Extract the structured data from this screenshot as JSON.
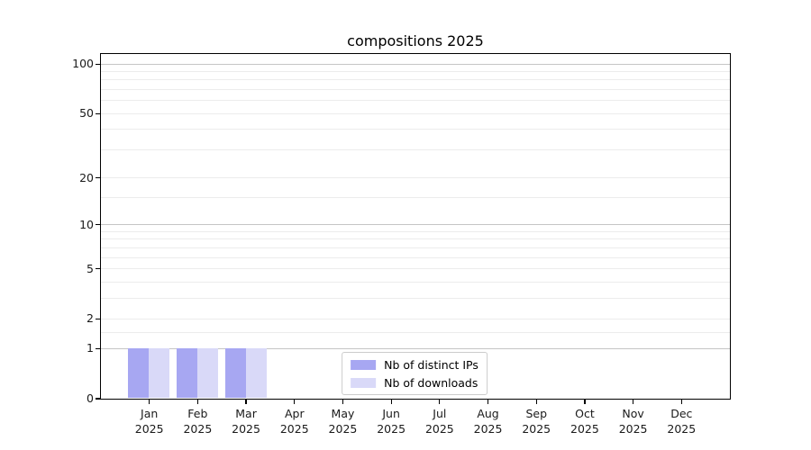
{
  "chart_data": {
    "type": "bar",
    "title": "compositions 2025",
    "xlabel": "",
    "ylabel": "",
    "yscale": "log1p",
    "ylim": [
      0,
      115
    ],
    "grid": true,
    "y_ticks": [
      100,
      50,
      20,
      10,
      5,
      2,
      1,
      0
    ],
    "y_major_gridlines": [
      1,
      10,
      100
    ],
    "y_minor_gridlines": [
      1.5,
      2,
      3,
      4,
      5,
      6,
      7,
      8,
      9,
      15,
      20,
      30,
      40,
      50,
      60,
      70,
      80,
      90
    ],
    "categories": [
      {
        "label": "Jan",
        "year": "2025"
      },
      {
        "label": "Feb",
        "year": "2025"
      },
      {
        "label": "Mar",
        "year": "2025"
      },
      {
        "label": "Apr",
        "year": "2025"
      },
      {
        "label": "May",
        "year": "2025"
      },
      {
        "label": "Jun",
        "year": "2025"
      },
      {
        "label": "Jul",
        "year": "2025"
      },
      {
        "label": "Aug",
        "year": "2025"
      },
      {
        "label": "Sep",
        "year": "2025"
      },
      {
        "label": "Oct",
        "year": "2025"
      },
      {
        "label": "Nov",
        "year": "2025"
      },
      {
        "label": "Dec",
        "year": "2025"
      }
    ],
    "series": [
      {
        "name": "Nb of distinct IPs",
        "color": "#a7a7f2",
        "values": [
          1,
          1,
          1,
          0,
          0,
          0,
          0,
          0,
          0,
          0,
          0,
          0
        ]
      },
      {
        "name": "Nb of downloads",
        "color": "#d9d9f8",
        "values": [
          1,
          1,
          1,
          0,
          0,
          0,
          0,
          0,
          0,
          0,
          0,
          0
        ]
      }
    ],
    "legend": {
      "position": "lower center"
    },
    "style": {
      "grid_major_color": "#c5c5c5",
      "grid_minor_color": "#ececec",
      "spine_color": "#000000",
      "text_color": "#1a1a1a",
      "background": "#ffffff"
    }
  }
}
